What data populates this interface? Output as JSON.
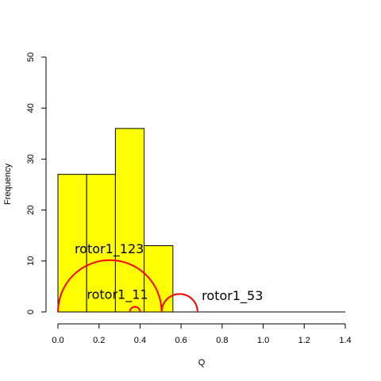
{
  "chart_data": {
    "type": "bar",
    "subtype": "histogram",
    "xlabel": "Q",
    "ylabel": "Frequency",
    "xlim": [
      0,
      1.4
    ],
    "ylim": [
      0,
      50
    ],
    "x_ticks": [
      "0.0",
      "0.2",
      "0.4",
      "0.6",
      "0.8",
      "1.0",
      "1.2",
      "1.4"
    ],
    "y_ticks": [
      "0",
      "10",
      "20",
      "30",
      "40",
      "50"
    ],
    "bins": [
      {
        "start": 0.0,
        "end": 0.14,
        "count": 27
      },
      {
        "start": 0.14,
        "end": 0.28,
        "count": 27
      },
      {
        "start": 0.28,
        "end": 0.42,
        "count": 36
      },
      {
        "start": 0.42,
        "end": 0.56,
        "count": 13
      }
    ],
    "bar_color": "#ffff00",
    "bar_border": "#000000",
    "annotations": [
      {
        "label": "rotor1_123",
        "x_from": 0.0,
        "x_to": 0.505,
        "label_x": 0.25,
        "label_y": 11.5
      },
      {
        "label": "rotor1_11",
        "x_from": 0.35,
        "x_to": 0.4,
        "label_x": 0.29,
        "label_y": 2.6
      },
      {
        "label": "rotor1_53",
        "x_from": 0.505,
        "x_to": 0.68,
        "label_x": 0.85,
        "label_y": 2.3
      }
    ],
    "annotation_color": "#ff0000",
    "grid": false,
    "legend": "none"
  }
}
